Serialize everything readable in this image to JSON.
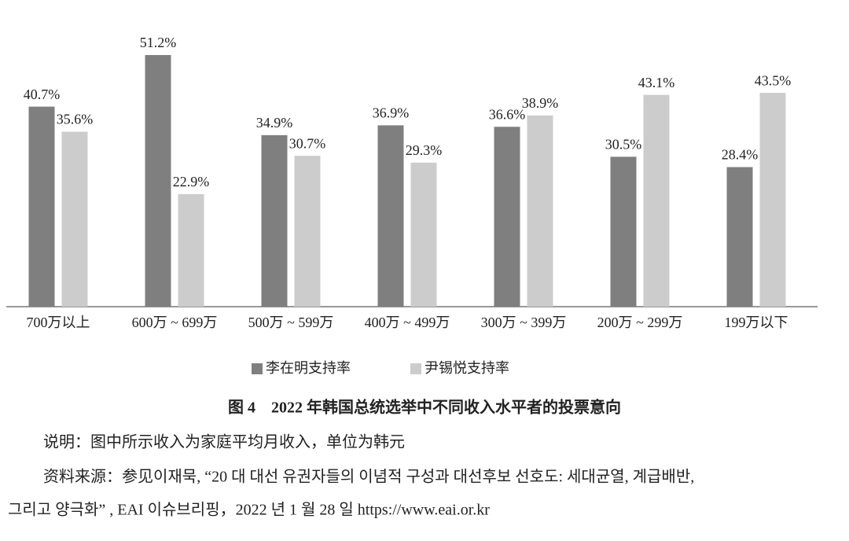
{
  "chart_data": {
    "type": "bar",
    "title": "图 4　2022 年韩国总统选举中不同收入水平者的投票意向",
    "categories": [
      "700万以上",
      "600万 ~ 699万",
      "500万 ~ 599万",
      "400万 ~ 499万",
      "300万 ~ 399万",
      "200万 ~ 299万",
      "199万以下"
    ],
    "series": [
      {
        "name": "李在明支持率",
        "color": "#7f7f7f",
        "values": [
          40.7,
          51.2,
          34.9,
          36.9,
          36.6,
          30.5,
          28.4
        ],
        "value_labels": [
          "40.7%",
          "51.2%",
          "34.9%",
          "36.9%",
          "36.6%",
          "30.5%",
          "28.4%"
        ]
      },
      {
        "name": "尹锡悦支持率",
        "color": "#cccccc",
        "values": [
          35.6,
          22.9,
          30.7,
          29.3,
          38.9,
          43.1,
          43.5
        ],
        "value_labels": [
          "35.6%",
          "22.9%",
          "30.7%",
          "29.3%",
          "38.9%",
          "43.1%",
          "43.5%"
        ]
      }
    ],
    "annotations": [
      "说明：图中所示收入为家庭平均月收入，单位为韩元",
      "资料来源：参见이재묵, “20 대 대선 유권자들의 이념적 구성과 대선후보 선호도: 세대균열, 계급배반,",
      "그리고 양극화” , EAI 이슈브리핑，2022 년 1 월 28 일 https://www.eai.or.kr"
    ]
  }
}
